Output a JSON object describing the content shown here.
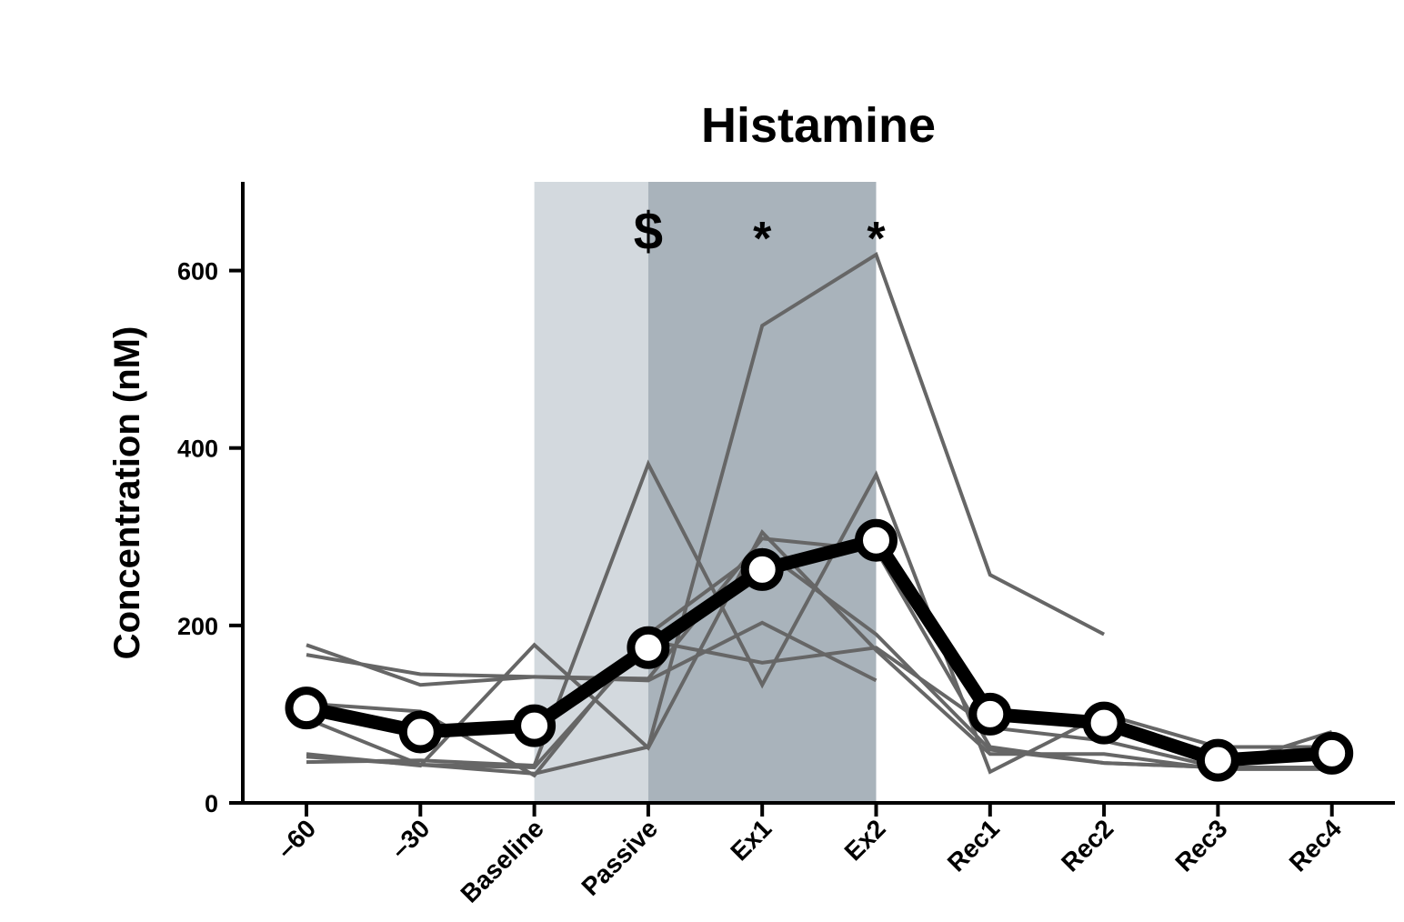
{
  "chart_data": {
    "type": "line",
    "title": "Histamine",
    "ylabel": "Concentration (nM)",
    "xlabel": "",
    "categories": [
      "–60",
      "–30",
      "Baseline",
      "Passive",
      "Ex1",
      "Ex2",
      "Rec1",
      "Rec2",
      "Rec3",
      "Rec4"
    ],
    "ylim": [
      0,
      700
    ],
    "yticks": [
      0,
      200,
      400,
      600
    ],
    "grid": false,
    "shaded_regions": [
      {
        "from": "Baseline",
        "to": "Passive",
        "color": "#d3d9de"
      },
      {
        "from": "Passive",
        "to": "Ex2",
        "color": "#a9b3bb"
      }
    ],
    "annotations": [
      {
        "category": "Passive",
        "text": "$"
      },
      {
        "category": "Ex1",
        "text": "*"
      },
      {
        "category": "Ex2",
        "text": "*"
      }
    ],
    "individual_series_color": "#666666",
    "individual_series": [
      {
        "values": [
          178,
          133,
          142,
          138,
          203,
          138,
          null,
          null,
          null,
          null
        ]
      },
      {
        "values": [
          167,
          145,
          142,
          140,
          298,
          285,
          63,
          45,
          40,
          40
        ]
      },
      {
        "values": [
          52,
          43,
          33,
          63,
          538,
          618,
          257,
          190,
          null,
          null
        ]
      },
      {
        "values": [
          55,
          42,
          178,
          62,
          305,
          172,
          55,
          55,
          38,
          38
        ]
      },
      {
        "values": [
          46,
          48,
          42,
          382,
          133,
          370,
          35,
          100,
          63,
          63
        ]
      },
      {
        "values": [
          112,
          103,
          31,
          190,
          285,
          190,
          60,
          45,
          40,
          80
        ]
      },
      {
        "values": [
          95,
          43,
          40,
          183,
          158,
          175,
          85,
          70,
          40,
          60
        ]
      }
    ],
    "mean_series": {
      "values": [
        107,
        80,
        87,
        175,
        263,
        296,
        100,
        90,
        48,
        56
      ],
      "color": "#000000"
    }
  }
}
